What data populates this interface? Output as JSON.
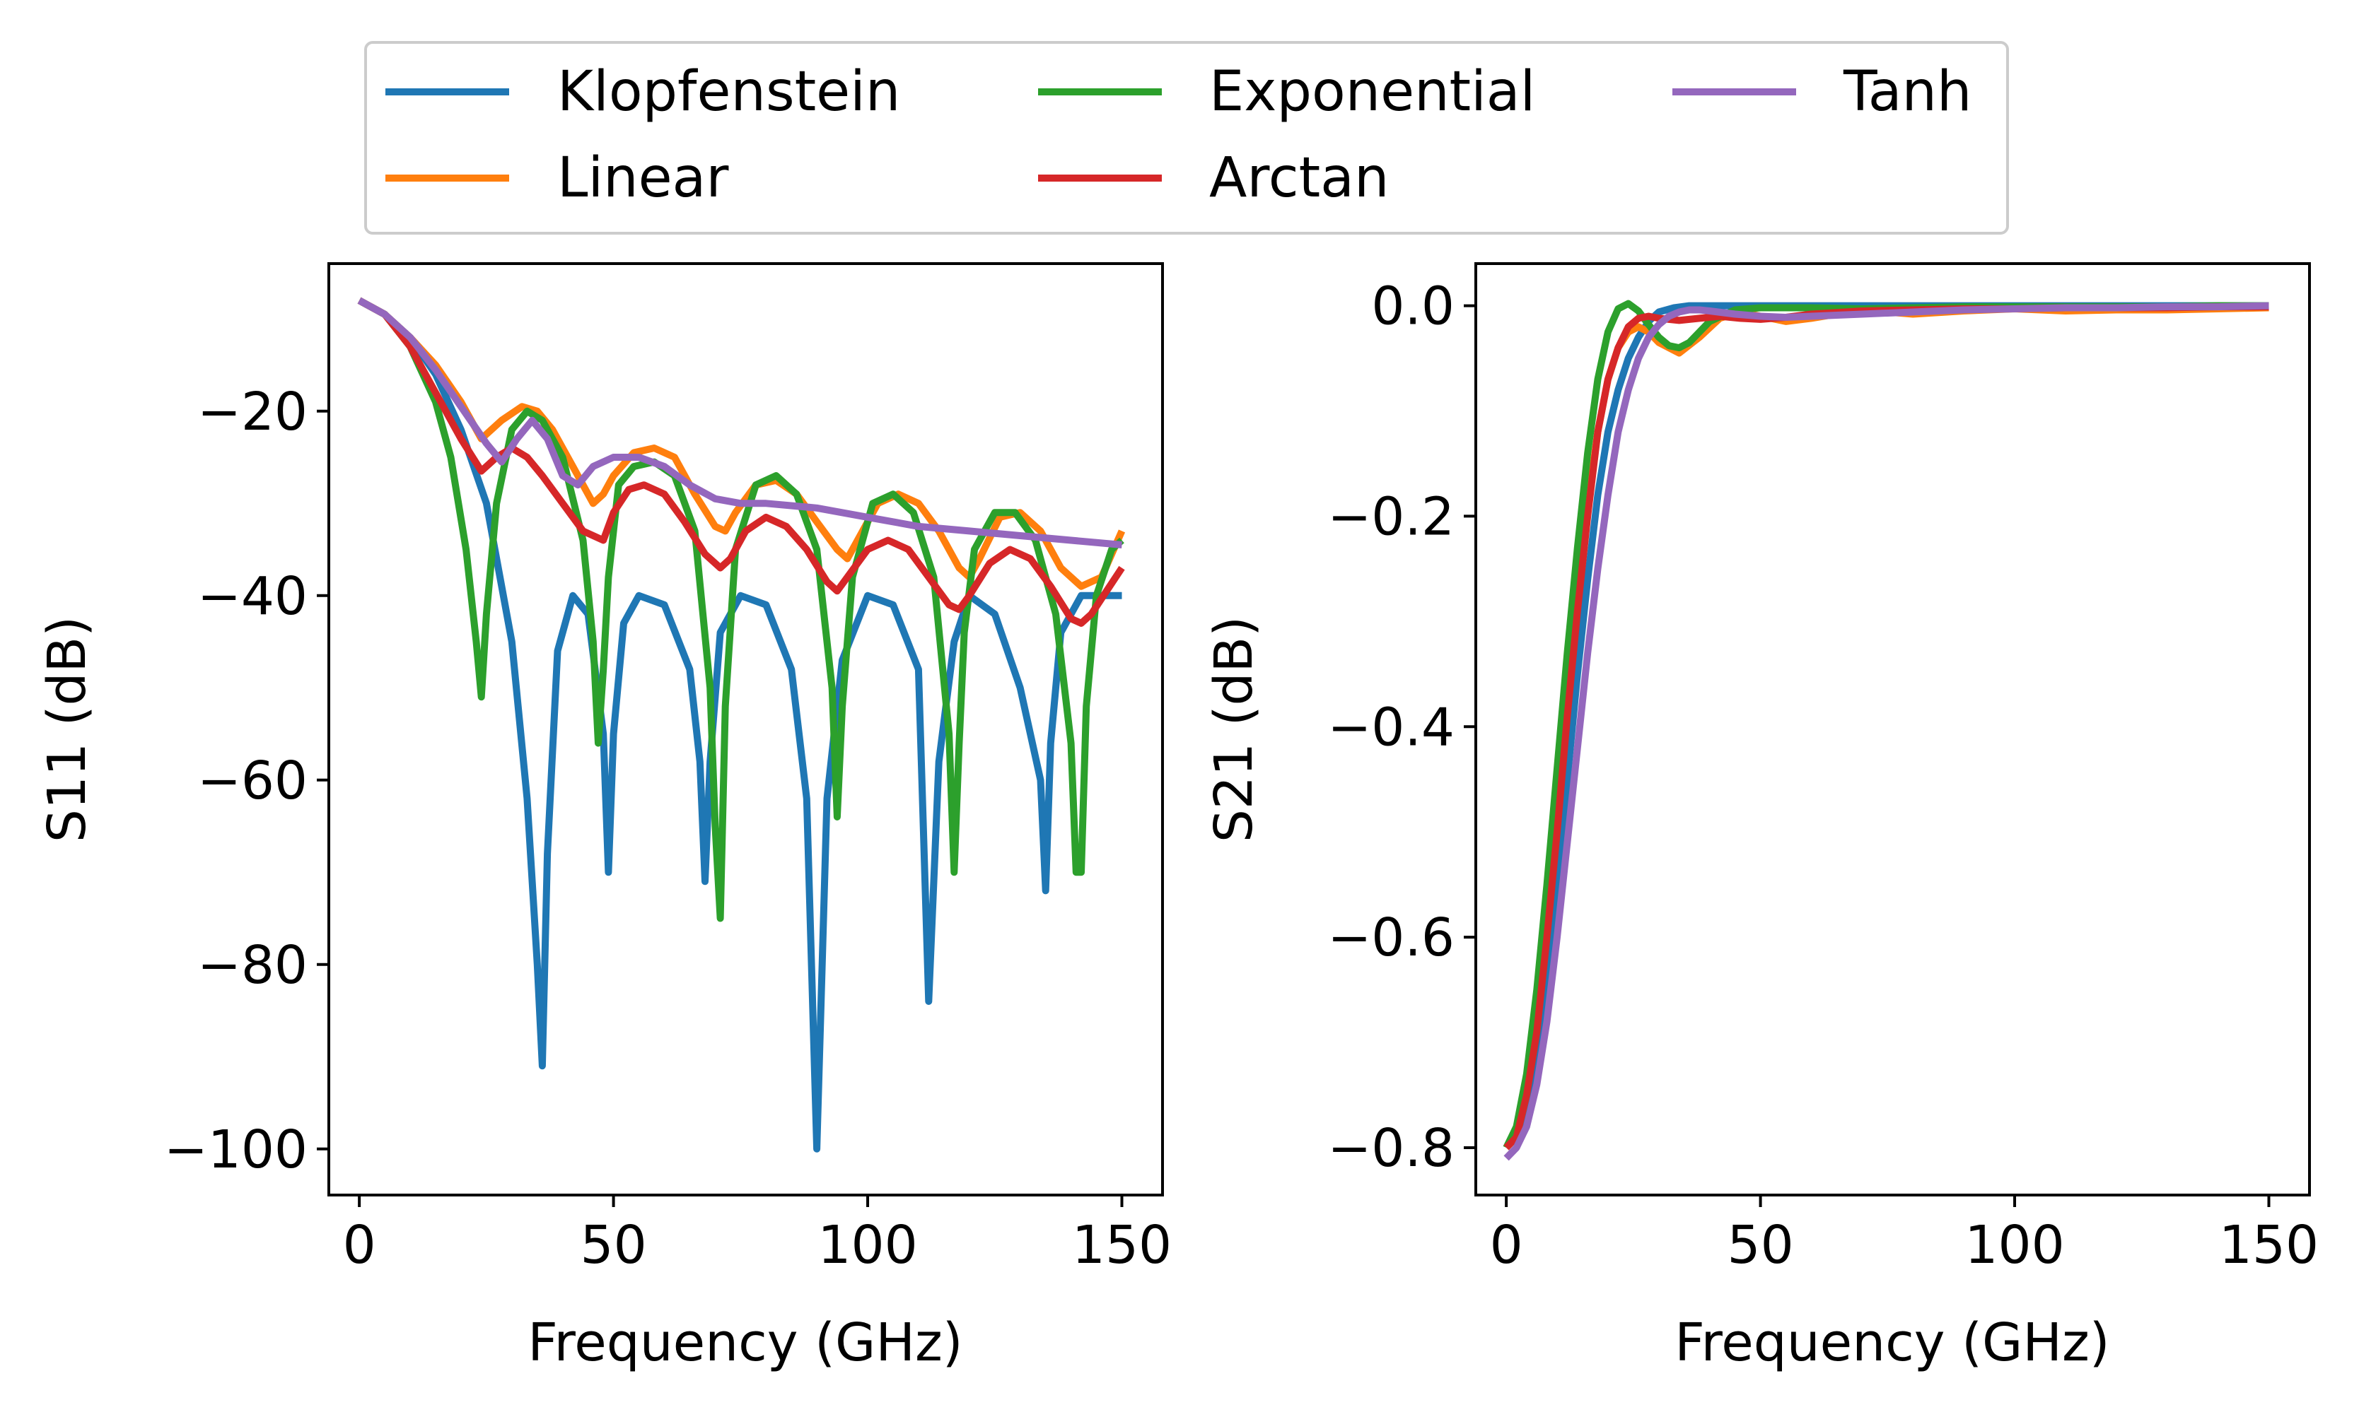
{
  "legend": {
    "placement": "top-center",
    "ncol": 3,
    "entries": [
      "Klopfenstein",
      "Linear",
      "Exponential",
      "Arctan",
      "Tanh"
    ]
  },
  "colors": {
    "Klopfenstein": "#1f77b4",
    "Linear": "#ff7f0e",
    "Exponential": "#2ca02c",
    "Arctan": "#d62728",
    "Tanh": "#9467bd"
  },
  "chart_data": [
    {
      "type": "line",
      "title": "",
      "xlabel": "Frequency (GHz)",
      "ylabel": "S11 (dB)",
      "xlim": [
        -6,
        158
      ],
      "ylim": [
        -105,
        -4
      ],
      "xticks": [
        0,
        50,
        100,
        150
      ],
      "xtick_labels": [
        "0",
        "50",
        "100",
        "150"
      ],
      "yticks": [
        -20,
        -40,
        -60,
        -80,
        -100
      ],
      "ytick_labels": [
        "−20",
        "−40",
        "−60",
        "−80",
        "−100"
      ],
      "grid": false,
      "series": [
        {
          "name": "Klopfenstein",
          "x": [
            0,
            5,
            10,
            15,
            20,
            25,
            30,
            33,
            35,
            36,
            37,
            39,
            42,
            45,
            48,
            49,
            50,
            52,
            55,
            60,
            65,
            67,
            68,
            69,
            71,
            75,
            80,
            85,
            88,
            90,
            92,
            95,
            100,
            105,
            110,
            112,
            114,
            117,
            120,
            125,
            130,
            134,
            135,
            136,
            138,
            142,
            146,
            150
          ],
          "y": [
            -8,
            -9.5,
            -12,
            -16,
            -22,
            -30,
            -45,
            -62,
            -80,
            -91,
            -68,
            -46,
            -40,
            -42,
            -55,
            -70,
            -55,
            -43,
            -40,
            -41,
            -48,
            -58,
            -71,
            -58,
            -44,
            -40,
            -41,
            -48,
            -62,
            -100,
            -62,
            -47,
            -40,
            -41,
            -48,
            -84,
            -58,
            -45,
            -40,
            -42,
            -50,
            -60,
            -72,
            -56,
            -44,
            -40,
            -40,
            -40
          ]
        },
        {
          "name": "Linear",
          "x": [
            0,
            5,
            10,
            15,
            20,
            24,
            28,
            32,
            35,
            38,
            42,
            46,
            48,
            50,
            54,
            58,
            62,
            66,
            70,
            72,
            74,
            78,
            82,
            86,
            90,
            94,
            96,
            98,
            102,
            106,
            110,
            114,
            118,
            120,
            122,
            126,
            130,
            134,
            138,
            142,
            146,
            150
          ],
          "y": [
            -8,
            -9.5,
            -12,
            -15,
            -19,
            -23,
            -21,
            -19.5,
            -20,
            -22,
            -26,
            -30,
            -29,
            -27,
            -24.5,
            -24,
            -25,
            -29,
            -32.5,
            -33,
            -31,
            -28,
            -27.5,
            -29,
            -32,
            -35,
            -36,
            -34,
            -30,
            -29,
            -30,
            -33,
            -37,
            -38,
            -36,
            -31.5,
            -31,
            -33,
            -37,
            -39,
            -38,
            -33
          ]
        },
        {
          "name": "Exponential",
          "x": [
            0,
            5,
            10,
            15,
            18,
            21,
            23,
            24,
            25,
            27,
            30,
            33,
            36,
            40,
            44,
            46,
            47,
            48,
            49,
            51,
            54,
            58,
            62,
            66,
            69,
            70,
            71,
            72,
            74,
            78,
            82,
            86,
            90,
            93,
            94,
            95,
            97,
            101,
            105,
            109,
            113,
            116,
            117,
            118,
            119,
            121,
            125,
            129,
            133,
            137,
            140,
            141,
            142,
            143,
            145,
            148,
            150
          ],
          "y": [
            -8,
            -9.5,
            -13,
            -19,
            -25,
            -35,
            -45,
            -51,
            -42,
            -30,
            -22,
            -20,
            -21,
            -25,
            -34,
            -45,
            -56,
            -48,
            -38,
            -28,
            -26,
            -25.5,
            -27,
            -33,
            -50,
            -65,
            -75,
            -52,
            -35,
            -28,
            -27,
            -29,
            -35,
            -50,
            -64,
            -52,
            -38,
            -30,
            -29,
            -31,
            -38,
            -55,
            -70,
            -56,
            -44,
            -35,
            -31,
            -31,
            -34,
            -42,
            -56,
            -70,
            -70,
            -52,
            -40,
            -35,
            -34
          ]
        },
        {
          "name": "Arctan",
          "x": [
            0,
            5,
            10,
            15,
            20,
            24,
            27,
            30,
            33,
            36,
            40,
            44,
            48,
            50,
            53,
            56,
            60,
            64,
            68,
            71,
            73,
            76,
            80,
            84,
            88,
            92,
            94,
            96,
            100,
            104,
            108,
            112,
            116,
            118,
            120,
            124,
            128,
            132,
            136,
            140,
            142,
            144,
            147,
            150
          ],
          "y": [
            -8,
            -9.5,
            -13,
            -18,
            -23,
            -26.5,
            -25,
            -24,
            -25,
            -27,
            -30,
            -33,
            -34,
            -31,
            -28.5,
            -28,
            -29,
            -32,
            -35.5,
            -37,
            -36,
            -33,
            -31.5,
            -32.5,
            -35,
            -38.5,
            -39.5,
            -38,
            -35,
            -34,
            -35,
            -38,
            -41,
            -41.5,
            -40,
            -36.5,
            -35,
            -36,
            -39,
            -42.5,
            -43,
            -42,
            -39.5,
            -37
          ]
        },
        {
          "name": "Tanh",
          "x": [
            0,
            5,
            10,
            15,
            20,
            25,
            28,
            31,
            34,
            37,
            40,
            43,
            46,
            50,
            55,
            60,
            65,
            70,
            75,
            80,
            90,
            100,
            110,
            120,
            130,
            140,
            150
          ],
          "y": [
            -8,
            -9.5,
            -12,
            -15.5,
            -19.5,
            -23.5,
            -25.5,
            -23,
            -21,
            -23,
            -27,
            -28,
            -26,
            -25,
            -25,
            -26,
            -28,
            -29.5,
            -30,
            -30,
            -30.5,
            -31.5,
            -32.5,
            -33,
            -33.5,
            -34,
            -34.5
          ]
        }
      ]
    },
    {
      "type": "line",
      "title": "",
      "xlabel": "Frequency (GHz)",
      "ylabel": "S21 (dB)",
      "xlim": [
        -6,
        158
      ],
      "ylim": [
        -0.845,
        0.04
      ],
      "xticks": [
        0,
        50,
        100,
        150
      ],
      "xtick_labels": [
        "0",
        "50",
        "100",
        "150"
      ],
      "yticks": [
        0.0,
        -0.2,
        -0.4,
        -0.6,
        -0.8
      ],
      "ytick_labels": [
        "0.0",
        "−0.2",
        "−0.4",
        "−0.6",
        "−0.8"
      ],
      "grid": false,
      "series": [
        {
          "name": "Klopfenstein",
          "x": [
            0,
            2,
            4,
            6,
            8,
            10,
            12,
            14,
            16,
            18,
            20,
            22,
            24,
            26,
            28,
            30,
            33,
            36,
            40,
            50,
            60,
            80,
            100,
            120,
            150
          ],
          "y": [
            -0.8,
            -0.79,
            -0.76,
            -0.71,
            -0.64,
            -0.55,
            -0.45,
            -0.35,
            -0.26,
            -0.18,
            -0.12,
            -0.08,
            -0.05,
            -0.03,
            -0.015,
            -0.006,
            -0.002,
            0,
            0,
            0,
            0,
            0,
            0,
            0,
            0
          ]
        },
        {
          "name": "Linear",
          "x": [
            0,
            2,
            4,
            6,
            8,
            10,
            12,
            14,
            16,
            18,
            20,
            22,
            24,
            26,
            28,
            30,
            34,
            38,
            42,
            46,
            50,
            55,
            60,
            70,
            80,
            90,
            100,
            110,
            120,
            130,
            140,
            150
          ],
          "y": [
            -0.8,
            -0.79,
            -0.75,
            -0.68,
            -0.59,
            -0.49,
            -0.38,
            -0.28,
            -0.19,
            -0.12,
            -0.07,
            -0.04,
            -0.025,
            -0.02,
            -0.025,
            -0.035,
            -0.045,
            -0.03,
            -0.012,
            -0.006,
            -0.01,
            -0.015,
            -0.012,
            -0.004,
            -0.008,
            -0.005,
            -0.003,
            -0.005,
            -0.004,
            -0.004,
            -0.003,
            -0.002
          ]
        },
        {
          "name": "Exponential",
          "x": [
            0,
            2,
            4,
            6,
            8,
            10,
            12,
            14,
            16,
            18,
            20,
            22,
            24,
            26,
            28,
            30,
            32,
            34,
            36,
            40,
            45,
            50,
            60,
            70,
            80,
            90,
            100,
            110,
            120,
            130,
            140,
            150
          ],
          "y": [
            -0.8,
            -0.78,
            -0.73,
            -0.65,
            -0.55,
            -0.44,
            -0.33,
            -0.23,
            -0.14,
            -0.07,
            -0.025,
            -0.003,
            0.002,
            -0.005,
            -0.018,
            -0.03,
            -0.038,
            -0.04,
            -0.035,
            -0.015,
            -0.004,
            -0.002,
            -0.002,
            -0.003,
            -0.002,
            -0.001,
            -0.001,
            -0.001,
            -0.001,
            -0.001,
            0,
            0
          ]
        },
        {
          "name": "Arctan",
          "x": [
            0,
            2,
            4,
            6,
            8,
            10,
            12,
            14,
            16,
            18,
            20,
            22,
            24,
            26,
            28,
            30,
            34,
            38,
            42,
            46,
            50,
            55,
            60,
            70,
            80,
            90,
            100,
            110,
            120,
            130,
            140,
            150
          ],
          "y": [
            -0.8,
            -0.79,
            -0.75,
            -0.69,
            -0.6,
            -0.5,
            -0.39,
            -0.29,
            -0.2,
            -0.12,
            -0.07,
            -0.04,
            -0.02,
            -0.012,
            -0.01,
            -0.012,
            -0.014,
            -0.012,
            -0.01,
            -0.012,
            -0.013,
            -0.011,
            -0.008,
            -0.005,
            -0.004,
            -0.003,
            -0.003,
            -0.002,
            -0.002,
            -0.002,
            -0.001,
            -0.001
          ]
        },
        {
          "name": "Tanh",
          "x": [
            0,
            2,
            4,
            6,
            8,
            10,
            12,
            14,
            16,
            18,
            20,
            22,
            24,
            26,
            28,
            30,
            32,
            34,
            36,
            38,
            40,
            45,
            50,
            55,
            60,
            70,
            80,
            90,
            100,
            110,
            120,
            130,
            140,
            150
          ],
          "y": [
            -0.81,
            -0.8,
            -0.78,
            -0.74,
            -0.68,
            -0.6,
            -0.51,
            -0.42,
            -0.33,
            -0.25,
            -0.18,
            -0.12,
            -0.08,
            -0.05,
            -0.03,
            -0.018,
            -0.01,
            -0.006,
            -0.004,
            -0.004,
            -0.005,
            -0.008,
            -0.01,
            -0.011,
            -0.01,
            -0.008,
            -0.006,
            -0.004,
            -0.003,
            -0.002,
            -0.002,
            -0.001,
            -0.001,
            0
          ]
        }
      ]
    }
  ]
}
